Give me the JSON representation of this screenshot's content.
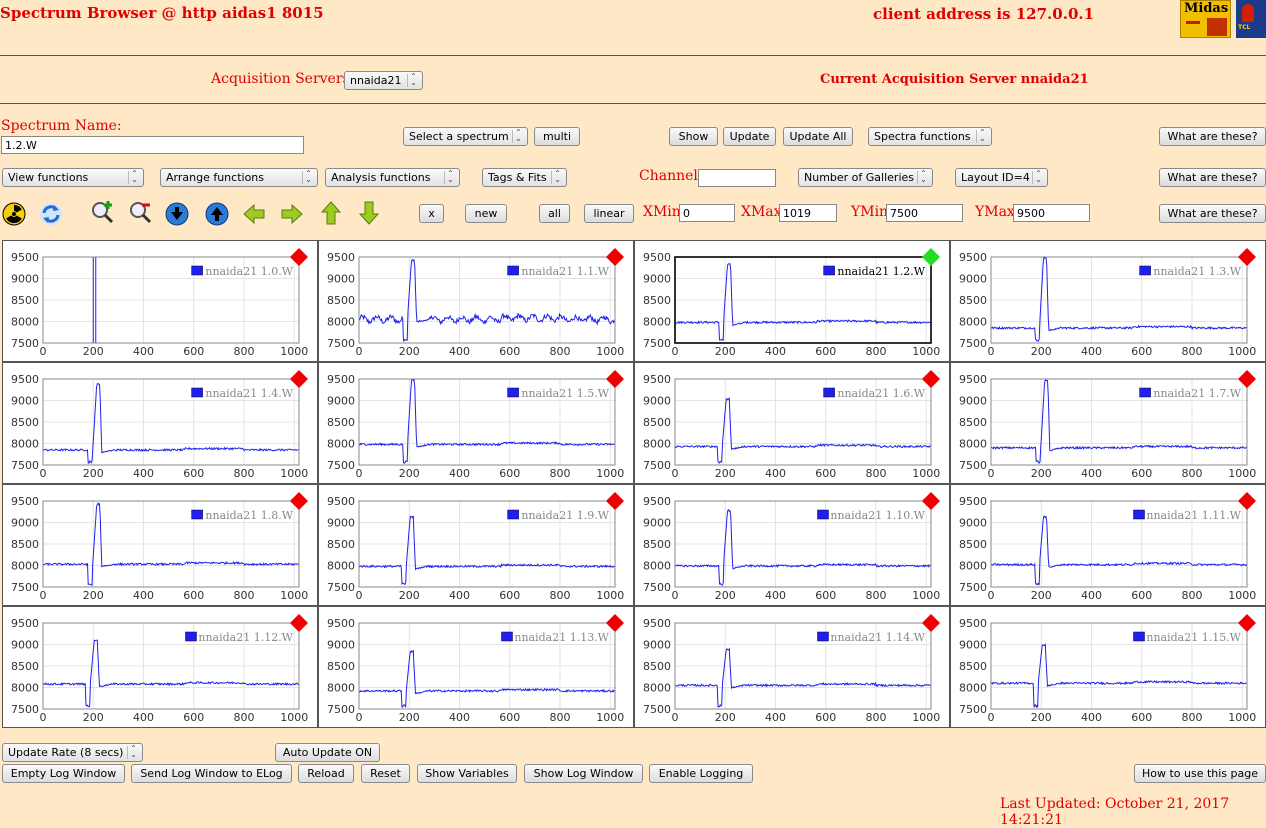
{
  "app_title": "Spectrum Browser @ http aidas1 8015",
  "client_address": "client address is 127.0.0.1",
  "logos": {
    "midas": "Midas",
    "tcl": "TCL"
  },
  "acquisition": {
    "label": "Acquisition Servers",
    "selected": "nnaida21",
    "current": "Current Acquisition Server nnaida21"
  },
  "spectrum": {
    "label": "Spectrum Name:",
    "value": "1.2.W",
    "select_label": "Select a spectrum",
    "multi": "multi",
    "show": "Show",
    "update": "Update",
    "update_all": "Update All",
    "spectra_functions": "Spectra functions",
    "what": "What are these?"
  },
  "row2": {
    "view_functions": "View functions",
    "arrange_functions": "Arrange functions",
    "analysis_functions": "Analysis functions",
    "tags_fits": "Tags & Fits",
    "channel_label": "Channel:",
    "channel_value": "",
    "galleries": "Number of Galleries",
    "layout": "Layout ID=4",
    "what": "What are these?"
  },
  "row3": {
    "x": "x",
    "new": "new",
    "all": "all",
    "linear": "linear",
    "xmin_label": "XMin",
    "xmin": "0",
    "xmax_label": "XMax",
    "xmax": "1019",
    "ymin_label": "YMin",
    "ymin": "7500",
    "ymax_label": "YMax",
    "ymax": "9500",
    "what": "What are these?"
  },
  "icons": [
    "radiation-icon",
    "refresh-icon",
    "zoom-in-icon",
    "zoom-out-icon",
    "arrow-down-blue-icon",
    "arrow-up-blue-icon",
    "arrow-left-icon",
    "arrow-right-icon",
    "arrow-up-icon",
    "arrow-down-icon"
  ],
  "colors": {
    "background": "#ffe8c6",
    "accent": "#e00000",
    "series": "#2020ee",
    "status_ok": "#22dd22",
    "status_off": "#ee0000"
  },
  "chart_data": [
    {
      "type": "line",
      "series": [
        {
          "name": "nnaida21 1.0.W"
        }
      ],
      "x_ticks": [
        "0",
        "200",
        "400",
        "600",
        "800",
        "1000"
      ],
      "y_ticks": [
        "9500",
        "9000",
        "8500",
        "8000",
        "7500"
      ],
      "xlim": [
        0,
        1019
      ],
      "ylim": [
        7500,
        9500
      ],
      "status": "off",
      "selected": false,
      "peak": {
        "x": 205,
        "y": 9500
      },
      "baseline": null
    },
    {
      "type": "line",
      "series": [
        {
          "name": "nnaida21 1.1.W"
        }
      ],
      "x_ticks": [
        "0",
        "200",
        "400",
        "600",
        "800",
        "1000"
      ],
      "y_ticks": [
        "9500",
        "9000",
        "8500",
        "8000",
        "7500"
      ],
      "xlim": [
        0,
        1019
      ],
      "ylim": [
        7500,
        9500
      ],
      "status": "off",
      "selected": false,
      "peak": {
        "x": 215,
        "y": 9450
      },
      "baseline": 8050
    },
    {
      "type": "line",
      "series": [
        {
          "name": "nnaida21 1.2.W"
        }
      ],
      "x_ticks": [
        "0",
        "200",
        "400",
        "600",
        "800",
        "1000"
      ],
      "y_ticks": [
        "9500",
        "9000",
        "8500",
        "8000",
        "7500"
      ],
      "xlim": [
        0,
        1019
      ],
      "ylim": [
        7500,
        9500
      ],
      "status": "ok",
      "selected": true,
      "peak": {
        "x": 215,
        "y": 9350
      },
      "baseline": 7980
    },
    {
      "type": "line",
      "series": [
        {
          "name": "nnaida21 1.3.W"
        }
      ],
      "x_ticks": [
        "0",
        "200",
        "400",
        "600",
        "800",
        "1000"
      ],
      "y_ticks": [
        "9500",
        "9000",
        "8500",
        "8000",
        "7500"
      ],
      "xlim": [
        0,
        1019
      ],
      "ylim": [
        7500,
        9500
      ],
      "status": "off",
      "selected": false,
      "peak": {
        "x": 215,
        "y": 9500
      },
      "baseline": 7850
    },
    {
      "type": "line",
      "series": [
        {
          "name": "nnaida21 1.4.W"
        }
      ],
      "x_ticks": [
        "0",
        "200",
        "400",
        "600",
        "800",
        "1000"
      ],
      "y_ticks": [
        "9500",
        "9000",
        "8500",
        "8000",
        "7500"
      ],
      "xlim": [
        0,
        1019
      ],
      "ylim": [
        7500,
        9500
      ],
      "status": "off",
      "selected": false,
      "peak": {
        "x": 220,
        "y": 9400
      },
      "baseline": 7850
    },
    {
      "type": "line",
      "series": [
        {
          "name": "nnaida21 1.5.W"
        }
      ],
      "x_ticks": [
        "0",
        "200",
        "400",
        "600",
        "800",
        "1000"
      ],
      "y_ticks": [
        "9500",
        "9000",
        "8500",
        "8000",
        "7500"
      ],
      "xlim": [
        0,
        1019
      ],
      "ylim": [
        7500,
        9500
      ],
      "status": "off",
      "selected": false,
      "peak": {
        "x": 215,
        "y": 9500
      },
      "baseline": 7980
    },
    {
      "type": "line",
      "series": [
        {
          "name": "nnaida21 1.6.W"
        }
      ],
      "x_ticks": [
        "0",
        "200",
        "400",
        "600",
        "800",
        "1000"
      ],
      "y_ticks": [
        "9500",
        "9000",
        "8500",
        "8000",
        "7500"
      ],
      "xlim": [
        0,
        1019
      ],
      "ylim": [
        7500,
        9500
      ],
      "status": "off",
      "selected": false,
      "peak": {
        "x": 210,
        "y": 9050
      },
      "baseline": 7930
    },
    {
      "type": "line",
      "series": [
        {
          "name": "nnaida21 1.7.W"
        }
      ],
      "x_ticks": [
        "0",
        "200",
        "400",
        "600",
        "800",
        "1000"
      ],
      "y_ticks": [
        "9500",
        "9000",
        "8500",
        "8000",
        "7500"
      ],
      "xlim": [
        0,
        1019
      ],
      "ylim": [
        7500,
        9500
      ],
      "status": "off",
      "selected": false,
      "peak": {
        "x": 220,
        "y": 9500
      },
      "baseline": 7900
    },
    {
      "type": "line",
      "series": [
        {
          "name": "nnaida21 1.8.W"
        }
      ],
      "x_ticks": [
        "0",
        "200",
        "400",
        "600",
        "800",
        "1000"
      ],
      "y_ticks": [
        "9500",
        "9000",
        "8500",
        "8000",
        "7500"
      ],
      "xlim": [
        0,
        1019
      ],
      "ylim": [
        7500,
        9500
      ],
      "status": "off",
      "selected": false,
      "peak": {
        "x": 220,
        "y": 9450
      },
      "baseline": 8030
    },
    {
      "type": "line",
      "series": [
        {
          "name": "nnaida21 1.9.W"
        }
      ],
      "x_ticks": [
        "0",
        "200",
        "400",
        "600",
        "800",
        "1000"
      ],
      "y_ticks": [
        "9500",
        "9000",
        "8500",
        "8000",
        "7500"
      ],
      "xlim": [
        0,
        1019
      ],
      "ylim": [
        7500,
        9500
      ],
      "status": "off",
      "selected": false,
      "peak": {
        "x": 210,
        "y": 9150
      },
      "baseline": 7980
    },
    {
      "type": "line",
      "series": [
        {
          "name": "nnaida21 1.10.W"
        }
      ],
      "x_ticks": [
        "0",
        "200",
        "400",
        "600",
        "800",
        "1000"
      ],
      "y_ticks": [
        "9500",
        "9000",
        "8500",
        "8000",
        "7500"
      ],
      "xlim": [
        0,
        1019
      ],
      "ylim": [
        7500,
        9500
      ],
      "status": "off",
      "selected": false,
      "peak": {
        "x": 215,
        "y": 9300
      },
      "baseline": 7990
    },
    {
      "type": "line",
      "series": [
        {
          "name": "nnaida21 1.11.W"
        }
      ],
      "x_ticks": [
        "0",
        "200",
        "400",
        "600",
        "800",
        "1000"
      ],
      "y_ticks": [
        "9500",
        "9000",
        "8500",
        "8000",
        "7500"
      ],
      "xlim": [
        0,
        1019
      ],
      "ylim": [
        7500,
        9500
      ],
      "status": "off",
      "selected": false,
      "peak": {
        "x": 215,
        "y": 9150
      },
      "baseline": 8020
    },
    {
      "type": "line",
      "series": [
        {
          "name": "nnaida21 1.12.W"
        }
      ],
      "x_ticks": [
        "0",
        "200",
        "400",
        "600",
        "800",
        "1000"
      ],
      "y_ticks": [
        "9500",
        "9000",
        "8500",
        "8000",
        "7500"
      ],
      "xlim": [
        0,
        1019
      ],
      "ylim": [
        7500,
        9500
      ],
      "status": "off",
      "selected": false,
      "peak": {
        "x": 210,
        "y": 9100
      },
      "baseline": 8080
    },
    {
      "type": "line",
      "series": [
        {
          "name": "nnaida21 1.13.W"
        }
      ],
      "x_ticks": [
        "0",
        "200",
        "400",
        "600",
        "800",
        "1000"
      ],
      "y_ticks": [
        "9500",
        "9000",
        "8500",
        "8000",
        "7500"
      ],
      "xlim": [
        0,
        1019
      ],
      "ylim": [
        7500,
        9500
      ],
      "status": "off",
      "selected": false,
      "peak": {
        "x": 210,
        "y": 8850
      },
      "baseline": 7920
    },
    {
      "type": "line",
      "series": [
        {
          "name": "nnaida21 1.14.W"
        }
      ],
      "x_ticks": [
        "0",
        "200",
        "400",
        "600",
        "800",
        "1000"
      ],
      "y_ticks": [
        "9500",
        "9000",
        "8500",
        "8000",
        "7500"
      ],
      "xlim": [
        0,
        1019
      ],
      "ylim": [
        7500,
        9500
      ],
      "status": "off",
      "selected": false,
      "peak": {
        "x": 210,
        "y": 8900
      },
      "baseline": 8050
    },
    {
      "type": "line",
      "series": [
        {
          "name": "nnaida21 1.15.W"
        }
      ],
      "x_ticks": [
        "0",
        "200",
        "400",
        "600",
        "800",
        "1000"
      ],
      "y_ticks": [
        "9500",
        "9000",
        "8500",
        "8000",
        "7500"
      ],
      "xlim": [
        0,
        1019
      ],
      "ylim": [
        7500,
        9500
      ],
      "status": "off",
      "selected": false,
      "peak": {
        "x": 210,
        "y": 9000
      },
      "baseline": 8100
    }
  ],
  "bottom": {
    "update_rate": "Update Rate (8 secs)",
    "auto_update": "Auto Update ON",
    "empty_log": "Empty Log Window",
    "send_log": "Send Log Window to ELog",
    "reload": "Reload",
    "reset": "Reset",
    "show_variables": "Show Variables",
    "show_log": "Show Log Window",
    "enable_logging": "Enable Logging",
    "how_to": "How to use this page",
    "last_updated": "Last Updated: October 21, 2017 14:21:21"
  }
}
